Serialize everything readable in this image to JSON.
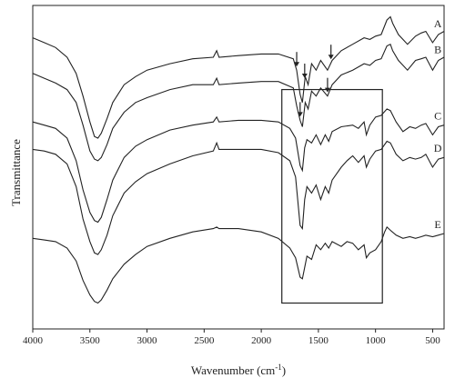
{
  "chart_data": {
    "type": "line",
    "xlabel": "Wavenumber (cm",
    "xlabel_superscript": "-1",
    "xlabel_suffix": ")",
    "ylabel": "Transmittance",
    "xlim": [
      4000,
      400
    ],
    "x_reversed": true,
    "x_ticks": [
      "4000",
      "3500",
      "3000",
      "2500",
      "2000",
      "1500",
      "1000",
      "500"
    ],
    "x_tick_values": [
      4000,
      3500,
      3000,
      2500,
      2000,
      1500,
      1000,
      500
    ],
    "y_ticks_shown": false,
    "ylim": [
      0,
      1
    ],
    "grid": false,
    "line_color": "#222222",
    "series": [
      {
        "name": "A",
        "label_at_x": 455,
        "points": [
          [
            4000,
            0.9
          ],
          [
            3900,
            0.885
          ],
          [
            3800,
            0.87
          ],
          [
            3700,
            0.84
          ],
          [
            3620,
            0.79
          ],
          [
            3560,
            0.72
          ],
          [
            3500,
            0.64
          ],
          [
            3460,
            0.595
          ],
          [
            3430,
            0.59
          ],
          [
            3400,
            0.605
          ],
          [
            3350,
            0.65
          ],
          [
            3300,
            0.7
          ],
          [
            3200,
            0.755
          ],
          [
            3100,
            0.78
          ],
          [
            3000,
            0.8
          ],
          [
            2800,
            0.82
          ],
          [
            2600,
            0.835
          ],
          [
            2420,
            0.84
          ],
          [
            2390,
            0.86
          ],
          [
            2370,
            0.84
          ],
          [
            2200,
            0.845
          ],
          [
            2000,
            0.85
          ],
          [
            1850,
            0.85
          ],
          [
            1720,
            0.835
          ],
          [
            1690,
            0.8
          ],
          [
            1660,
            0.725
          ],
          [
            1640,
            0.7
          ],
          [
            1615,
            0.78
          ],
          [
            1590,
            0.755
          ],
          [
            1560,
            0.82
          ],
          [
            1520,
            0.8
          ],
          [
            1480,
            0.83
          ],
          [
            1420,
            0.8
          ],
          [
            1380,
            0.83
          ],
          [
            1300,
            0.86
          ],
          [
            1200,
            0.88
          ],
          [
            1100,
            0.9
          ],
          [
            1050,
            0.895
          ],
          [
            1000,
            0.905
          ],
          [
            950,
            0.91
          ],
          [
            900,
            0.955
          ],
          [
            870,
            0.965
          ],
          [
            850,
            0.945
          ],
          [
            800,
            0.91
          ],
          [
            720,
            0.88
          ],
          [
            650,
            0.905
          ],
          [
            600,
            0.915
          ],
          [
            560,
            0.92
          ],
          [
            500,
            0.885
          ],
          [
            450,
            0.91
          ],
          [
            400,
            0.92
          ]
        ]
      },
      {
        "name": "B",
        "label_at_x": 455,
        "points": [
          [
            4000,
            0.79
          ],
          [
            3900,
            0.775
          ],
          [
            3800,
            0.76
          ],
          [
            3700,
            0.74
          ],
          [
            3620,
            0.7
          ],
          [
            3560,
            0.63
          ],
          [
            3500,
            0.55
          ],
          [
            3460,
            0.525
          ],
          [
            3430,
            0.52
          ],
          [
            3400,
            0.53
          ],
          [
            3350,
            0.57
          ],
          [
            3300,
            0.62
          ],
          [
            3200,
            0.67
          ],
          [
            3100,
            0.7
          ],
          [
            3000,
            0.715
          ],
          [
            2800,
            0.74
          ],
          [
            2600,
            0.755
          ],
          [
            2420,
            0.755
          ],
          [
            2390,
            0.775
          ],
          [
            2370,
            0.755
          ],
          [
            2200,
            0.76
          ],
          [
            2000,
            0.765
          ],
          [
            1850,
            0.765
          ],
          [
            1720,
            0.745
          ],
          [
            1690,
            0.69
          ],
          [
            1660,
            0.645
          ],
          [
            1640,
            0.625
          ],
          [
            1615,
            0.7
          ],
          [
            1590,
            0.68
          ],
          [
            1560,
            0.735
          ],
          [
            1520,
            0.72
          ],
          [
            1480,
            0.745
          ],
          [
            1420,
            0.72
          ],
          [
            1380,
            0.755
          ],
          [
            1300,
            0.785
          ],
          [
            1200,
            0.8
          ],
          [
            1100,
            0.82
          ],
          [
            1050,
            0.815
          ],
          [
            1000,
            0.83
          ],
          [
            950,
            0.835
          ],
          [
            900,
            0.875
          ],
          [
            870,
            0.88
          ],
          [
            850,
            0.86
          ],
          [
            800,
            0.83
          ],
          [
            720,
            0.8
          ],
          [
            650,
            0.83
          ],
          [
            600,
            0.835
          ],
          [
            560,
            0.84
          ],
          [
            500,
            0.8
          ],
          [
            450,
            0.83
          ],
          [
            400,
            0.84
          ]
        ]
      },
      {
        "name": "C",
        "label_at_x": 455,
        "points": [
          [
            4000,
            0.64
          ],
          [
            3900,
            0.63
          ],
          [
            3800,
            0.62
          ],
          [
            3700,
            0.59
          ],
          [
            3620,
            0.52
          ],
          [
            3560,
            0.43
          ],
          [
            3500,
            0.36
          ],
          [
            3460,
            0.335
          ],
          [
            3430,
            0.33
          ],
          [
            3400,
            0.345
          ],
          [
            3350,
            0.4
          ],
          [
            3300,
            0.46
          ],
          [
            3200,
            0.53
          ],
          [
            3100,
            0.565
          ],
          [
            3000,
            0.585
          ],
          [
            2800,
            0.615
          ],
          [
            2600,
            0.63
          ],
          [
            2420,
            0.64
          ],
          [
            2390,
            0.655
          ],
          [
            2370,
            0.64
          ],
          [
            2200,
            0.645
          ],
          [
            2000,
            0.645
          ],
          [
            1850,
            0.64
          ],
          [
            1750,
            0.62
          ],
          [
            1700,
            0.59
          ],
          [
            1660,
            0.505
          ],
          [
            1640,
            0.49
          ],
          [
            1620,
            0.56
          ],
          [
            1600,
            0.585
          ],
          [
            1560,
            0.575
          ],
          [
            1520,
            0.6
          ],
          [
            1480,
            0.57
          ],
          [
            1440,
            0.6
          ],
          [
            1410,
            0.58
          ],
          [
            1380,
            0.61
          ],
          [
            1300,
            0.625
          ],
          [
            1200,
            0.63
          ],
          [
            1150,
            0.62
          ],
          [
            1100,
            0.64
          ],
          [
            1080,
            0.6
          ],
          [
            1050,
            0.63
          ],
          [
            1000,
            0.655
          ],
          [
            950,
            0.66
          ],
          [
            900,
            0.68
          ],
          [
            870,
            0.675
          ],
          [
            820,
            0.64
          ],
          [
            760,
            0.61
          ],
          [
            700,
            0.625
          ],
          [
            650,
            0.62
          ],
          [
            600,
            0.63
          ],
          [
            560,
            0.635
          ],
          [
            500,
            0.6
          ],
          [
            450,
            0.625
          ],
          [
            400,
            0.63
          ]
        ]
      },
      {
        "name": "D",
        "label_at_x": 455,
        "points": [
          [
            4000,
            0.555
          ],
          [
            3900,
            0.55
          ],
          [
            3800,
            0.54
          ],
          [
            3700,
            0.51
          ],
          [
            3620,
            0.44
          ],
          [
            3560,
            0.34
          ],
          [
            3500,
            0.27
          ],
          [
            3460,
            0.235
          ],
          [
            3430,
            0.23
          ],
          [
            3400,
            0.245
          ],
          [
            3350,
            0.29
          ],
          [
            3300,
            0.35
          ],
          [
            3200,
            0.42
          ],
          [
            3100,
            0.455
          ],
          [
            3000,
            0.48
          ],
          [
            2800,
            0.51
          ],
          [
            2600,
            0.535
          ],
          [
            2420,
            0.55
          ],
          [
            2390,
            0.575
          ],
          [
            2370,
            0.555
          ],
          [
            2200,
            0.555
          ],
          [
            2000,
            0.555
          ],
          [
            1850,
            0.545
          ],
          [
            1750,
            0.52
          ],
          [
            1700,
            0.47
          ],
          [
            1660,
            0.32
          ],
          [
            1640,
            0.31
          ],
          [
            1620,
            0.4
          ],
          [
            1600,
            0.44
          ],
          [
            1560,
            0.42
          ],
          [
            1520,
            0.445
          ],
          [
            1480,
            0.4
          ],
          [
            1440,
            0.44
          ],
          [
            1410,
            0.42
          ],
          [
            1380,
            0.46
          ],
          [
            1300,
            0.5
          ],
          [
            1250,
            0.52
          ],
          [
            1200,
            0.535
          ],
          [
            1150,
            0.515
          ],
          [
            1100,
            0.535
          ],
          [
            1080,
            0.5
          ],
          [
            1050,
            0.525
          ],
          [
            1000,
            0.55
          ],
          [
            950,
            0.555
          ],
          [
            900,
            0.58
          ],
          [
            870,
            0.575
          ],
          [
            820,
            0.54
          ],
          [
            760,
            0.52
          ],
          [
            700,
            0.53
          ],
          [
            650,
            0.525
          ],
          [
            600,
            0.53
          ],
          [
            560,
            0.54
          ],
          [
            500,
            0.5
          ],
          [
            450,
            0.525
          ],
          [
            400,
            0.53
          ]
        ]
      },
      {
        "name": "E",
        "label_at_x": 455,
        "points": [
          [
            4000,
            0.28
          ],
          [
            3900,
            0.275
          ],
          [
            3800,
            0.27
          ],
          [
            3700,
            0.25
          ],
          [
            3620,
            0.21
          ],
          [
            3560,
            0.15
          ],
          [
            3500,
            0.105
          ],
          [
            3460,
            0.085
          ],
          [
            3430,
            0.08
          ],
          [
            3400,
            0.09
          ],
          [
            3350,
            0.12
          ],
          [
            3300,
            0.155
          ],
          [
            3200,
            0.2
          ],
          [
            3100,
            0.23
          ],
          [
            3000,
            0.255
          ],
          [
            2800,
            0.28
          ],
          [
            2600,
            0.3
          ],
          [
            2420,
            0.31
          ],
          [
            2390,
            0.315
          ],
          [
            2370,
            0.31
          ],
          [
            2200,
            0.31
          ],
          [
            2000,
            0.3
          ],
          [
            1850,
            0.28
          ],
          [
            1750,
            0.25
          ],
          [
            1700,
            0.22
          ],
          [
            1660,
            0.16
          ],
          [
            1640,
            0.155
          ],
          [
            1620,
            0.19
          ],
          [
            1600,
            0.225
          ],
          [
            1560,
            0.215
          ],
          [
            1520,
            0.26
          ],
          [
            1480,
            0.245
          ],
          [
            1440,
            0.265
          ],
          [
            1410,
            0.25
          ],
          [
            1380,
            0.27
          ],
          [
            1300,
            0.255
          ],
          [
            1250,
            0.27
          ],
          [
            1200,
            0.265
          ],
          [
            1150,
            0.245
          ],
          [
            1100,
            0.26
          ],
          [
            1080,
            0.22
          ],
          [
            1050,
            0.235
          ],
          [
            1000,
            0.245
          ],
          [
            950,
            0.27
          ],
          [
            920,
            0.3
          ],
          [
            900,
            0.315
          ],
          [
            870,
            0.305
          ],
          [
            820,
            0.29
          ],
          [
            760,
            0.28
          ],
          [
            700,
            0.285
          ],
          [
            650,
            0.28
          ],
          [
            600,
            0.285
          ],
          [
            560,
            0.29
          ],
          [
            500,
            0.285
          ],
          [
            450,
            0.29
          ],
          [
            400,
            0.295
          ]
        ]
      }
    ],
    "arrows": [
      {
        "series": "A",
        "x": 1690
      },
      {
        "series": "A",
        "x": 1620
      },
      {
        "series": "A",
        "x": 1390
      },
      {
        "series": "B",
        "x": 1660
      },
      {
        "series": "B",
        "x": 1420
      }
    ],
    "highlight_box": {
      "x_from": 1820,
      "x_to": 940,
      "y_from": 0.08,
      "y_to": 0.74
    }
  }
}
